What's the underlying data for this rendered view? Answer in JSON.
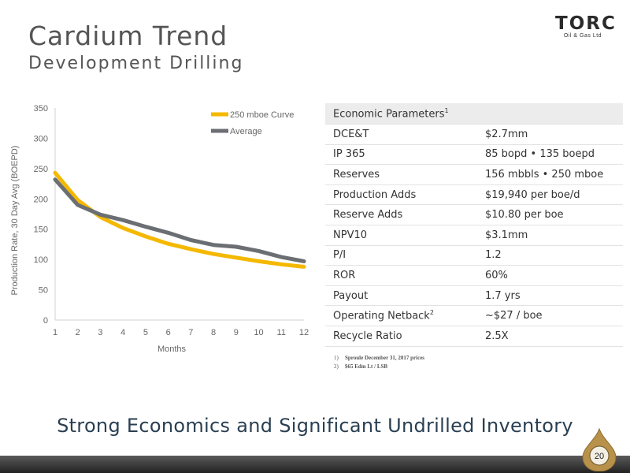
{
  "slide": {
    "title": "Cardium Trend",
    "subtitle": "Development Drilling",
    "tagline": "Strong Economics and Significant Undrilled Inventory",
    "page_number": "20"
  },
  "logo": {
    "name": "TORC",
    "sub": "Oil & Gas Ltd"
  },
  "chart_data": {
    "type": "line",
    "xlabel": "Months",
    "ylabel": "Production Rate, 30 Day Avg (BOEPD)",
    "x": [
      1,
      2,
      3,
      4,
      5,
      6,
      7,
      8,
      9,
      10,
      11,
      12
    ],
    "ylim": [
      0,
      350
    ],
    "yticks": [
      0,
      50,
      100,
      150,
      200,
      250,
      300,
      350
    ],
    "grid": false,
    "legend": "top-right",
    "series": [
      {
        "name": "250 mboe Curve",
        "color": "#f5b800",
        "values": [
          243,
          198,
          170,
          152,
          138,
          126,
          117,
          109,
          103,
          97,
          92,
          88
        ]
      },
      {
        "name": "Average",
        "color": "#6b6e72",
        "values": [
          232,
          190,
          174,
          165,
          154,
          144,
          132,
          124,
          121,
          114,
          104,
          97
        ]
      }
    ]
  },
  "table": {
    "header": "Economic Parameters",
    "header_sup": "1",
    "rows": [
      {
        "label": "DCE&T",
        "sup": "",
        "value": "$2.7mm"
      },
      {
        "label": "IP 365",
        "sup": "",
        "value": "85 bopd  •  135 boepd"
      },
      {
        "label": "Reserves",
        "sup": "",
        "value": "156 mbbls  •  250 mboe"
      },
      {
        "label": "Production Adds",
        "sup": "",
        "value": "$19,940 per boe/d"
      },
      {
        "label": "Reserve Adds",
        "sup": "",
        "value": "$10.80 per boe"
      },
      {
        "label": "NPV10",
        "sup": "",
        "value": "$3.1mm"
      },
      {
        "label": "P/I",
        "sup": "",
        "value": "1.2"
      },
      {
        "label": "ROR",
        "sup": "",
        "value": "60%"
      },
      {
        "label": "Payout",
        "sup": "",
        "value": "1.7 yrs"
      },
      {
        "label": "Operating Netback",
        "sup": "2",
        "value": "~$27 / boe"
      },
      {
        "label": "Recycle Ratio",
        "sup": "",
        "value": "2.5X"
      }
    ]
  },
  "footnotes": [
    {
      "num": "1)",
      "text": "Sproule December 31, 2017 prices"
    },
    {
      "num": "2)",
      "text": "$65 Edm Lt / LSB"
    }
  ]
}
